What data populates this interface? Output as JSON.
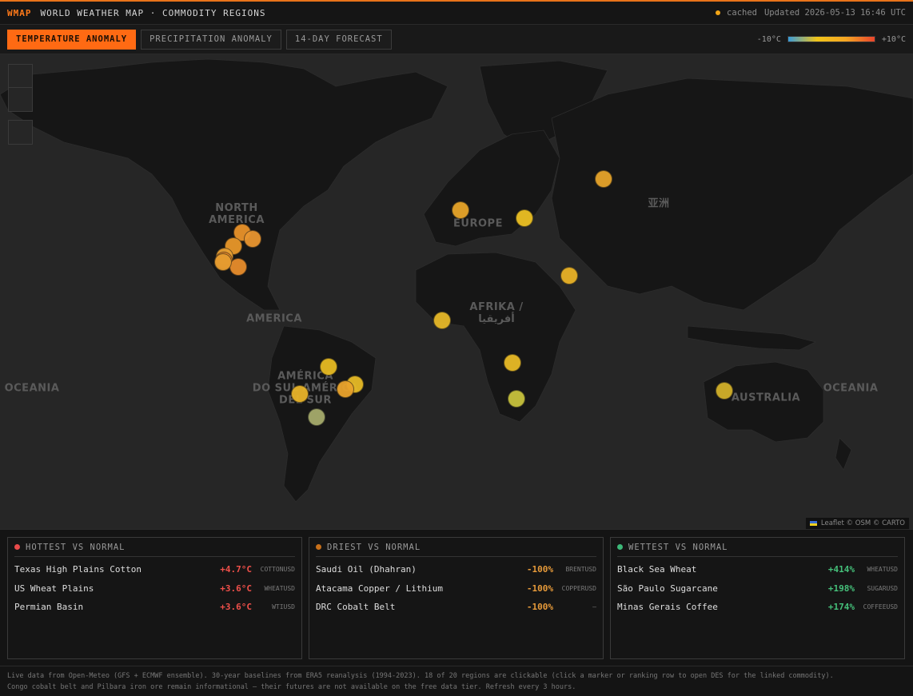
{
  "header": {
    "brand": "WMAP",
    "title": "WORLD WEATHER MAP · COMMODITY REGIONS",
    "cache_status": "cached",
    "updated": "Updated 2026-05-13 16:46 UTC",
    "cache_color": "#f2a516"
  },
  "tabs": [
    {
      "label": "TEMPERATURE ANOMALY",
      "active": true
    },
    {
      "label": "PRECIPITATION ANOMALY",
      "active": false
    },
    {
      "label": "14-DAY FORECAST",
      "active": false
    }
  ],
  "scale": {
    "min_label": "-10°C",
    "max_label": "+10°C"
  },
  "map": {
    "labels": [
      {
        "name": "label-north-america",
        "text": "NORTH\nAMERICA"
      },
      {
        "name": "label-america",
        "text": "AMERICA"
      },
      {
        "name": "label-europe",
        "text": "EUROPE"
      },
      {
        "name": "label-asia",
        "text": "亚洲"
      },
      {
        "name": "label-africa",
        "text": "AFRIKA /\nأفريقيا"
      },
      {
        "name": "label-south-america",
        "text": "AMÉRICA\nDO SUL AMÉRICA\nDEL SUR"
      },
      {
        "name": "label-australia",
        "text": "AUSTRALIA"
      },
      {
        "name": "label-oceania-left",
        "text": "OCEANIA"
      },
      {
        "name": "label-oceania-right",
        "text": "OCEANIA"
      }
    ],
    "markers": [
      {
        "color": "#e8922a"
      },
      {
        "color": "#e89530"
      },
      {
        "color": "#e8972a"
      },
      {
        "color": "#e8a032"
      },
      {
        "color": "#ea8a28"
      },
      {
        "color": "#e78c2c"
      },
      {
        "color": "#e59c30"
      },
      {
        "color": "#e7a52a"
      },
      {
        "color": "#ecc023"
      },
      {
        "color": "#e6a42b"
      },
      {
        "color": "#e8b227"
      },
      {
        "color": "#e6b828"
      },
      {
        "color": "#e8ba26"
      },
      {
        "color": "#c8c23c"
      },
      {
        "color": "#e6ba22"
      },
      {
        "color": "#e6ba26"
      },
      {
        "color": "#e9a32c"
      },
      {
        "color": "#e8b429"
      },
      {
        "color": "#a6ab6c"
      },
      {
        "color": "#d2b02a"
      }
    ],
    "attribution": "Leaflet © OSM © CARTO"
  },
  "panels": {
    "hottest": {
      "title": "HOTTEST VS NORMAL",
      "dot_color": "#e84a4a",
      "value_color": "#f0504a",
      "rows": [
        {
          "name": "Texas High Plains Cotton",
          "value": "+4.7°C",
          "ticker": "COTTONUSD"
        },
        {
          "name": "US Wheat Plains",
          "value": "+3.6°C",
          "ticker": "WHEATUSD"
        },
        {
          "name": "Permian Basin",
          "value": "+3.6°C",
          "ticker": "WTIUSD"
        }
      ]
    },
    "driest": {
      "title": "DRIEST VS NORMAL",
      "dot_color": "#c8701a",
      "value_color": "#e69a3a",
      "rows": [
        {
          "name": "Saudi Oil (Dhahran)",
          "value": "-100%",
          "ticker": "BRENTUSD"
        },
        {
          "name": "Atacama Copper / Lithium",
          "value": "-100%",
          "ticker": "COPPERUSD"
        },
        {
          "name": "DRC Cobalt Belt",
          "value": "-100%",
          "ticker": "—"
        }
      ]
    },
    "wettest": {
      "title": "WETTEST VS NORMAL",
      "dot_color": "#3cb878",
      "value_color": "#45c07a",
      "rows": [
        {
          "name": "Black Sea Wheat",
          "value": "+414%",
          "ticker": "WHEATUSD"
        },
        {
          "name": "São Paulo Sugarcane",
          "value": "+198%",
          "ticker": "SUGARUSD"
        },
        {
          "name": "Minas Gerais Coffee",
          "value": "+174%",
          "ticker": "COFFEEUSD"
        }
      ]
    }
  },
  "footer": {
    "line1": "Live data from Open-Meteo (GFS + ECMWF ensemble). 30-year baselines from ERA5 reanalysis (1994-2023). 18 of 20 regions are clickable (click a marker or ranking row to open DES for the linked commodity).",
    "line2": "Congo cobalt belt and Pilbara iron ore remain informational — their futures are not available on the free data tier. Refresh every 3 hours."
  }
}
